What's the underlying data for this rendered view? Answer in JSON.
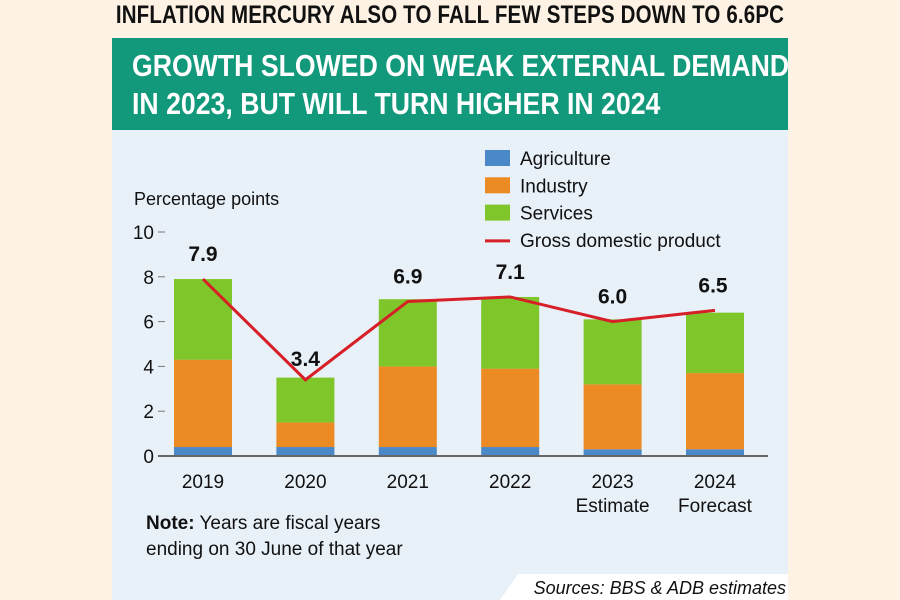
{
  "headline": "INFLATION MERCURY ALSO TO FALL FEW STEPS DOWN TO 6.6PC",
  "banner": {
    "line1": "GROWTH SLOWED ON WEAK EXTERNAL DEMAND",
    "line2": "IN 2023, BUT WILL TURN HIGHER IN 2024"
  },
  "note": {
    "bold": "Note:",
    "line1": " Years are fiscal years",
    "line2": "ending on 30 June of that year"
  },
  "sources": "Sources: BBS & ADB estimates",
  "colors": {
    "agriculture": "#4a88c8",
    "industry": "#ec8a24",
    "services": "#7ec62a",
    "gdp": "#d61f26",
    "banner": "#12987a"
  },
  "chart_data": {
    "type": "bar",
    "stacked": true,
    "ylabel": "Percentage points",
    "ylim": [
      0,
      10
    ],
    "yticks": [
      "0",
      "2",
      "4",
      "6",
      "8",
      "10"
    ],
    "categories": [
      [
        "2019"
      ],
      [
        "2020"
      ],
      [
        "2021"
      ],
      [
        "2022"
      ],
      [
        "2023",
        "Estimate"
      ],
      [
        "2024",
        "Forecast"
      ]
    ],
    "series": [
      {
        "name": "Agriculture",
        "type": "bar",
        "values": [
          0.4,
          0.4,
          0.4,
          0.4,
          0.3,
          0.3
        ]
      },
      {
        "name": "Industry",
        "type": "bar",
        "values": [
          3.9,
          1.1,
          3.6,
          3.5,
          2.9,
          3.4
        ]
      },
      {
        "name": "Services",
        "type": "bar",
        "values": [
          3.6,
          2.0,
          3.0,
          3.2,
          2.9,
          2.7
        ]
      },
      {
        "name": "Gross domestic product",
        "type": "line",
        "values": [
          7.9,
          3.4,
          6.9,
          7.1,
          6.0,
          6.5
        ],
        "labels": [
          "7.9",
          "3.4",
          "6.9",
          "7.1",
          "6.0",
          "6.5"
        ]
      }
    ],
    "legend": "top-right",
    "grid": false
  }
}
